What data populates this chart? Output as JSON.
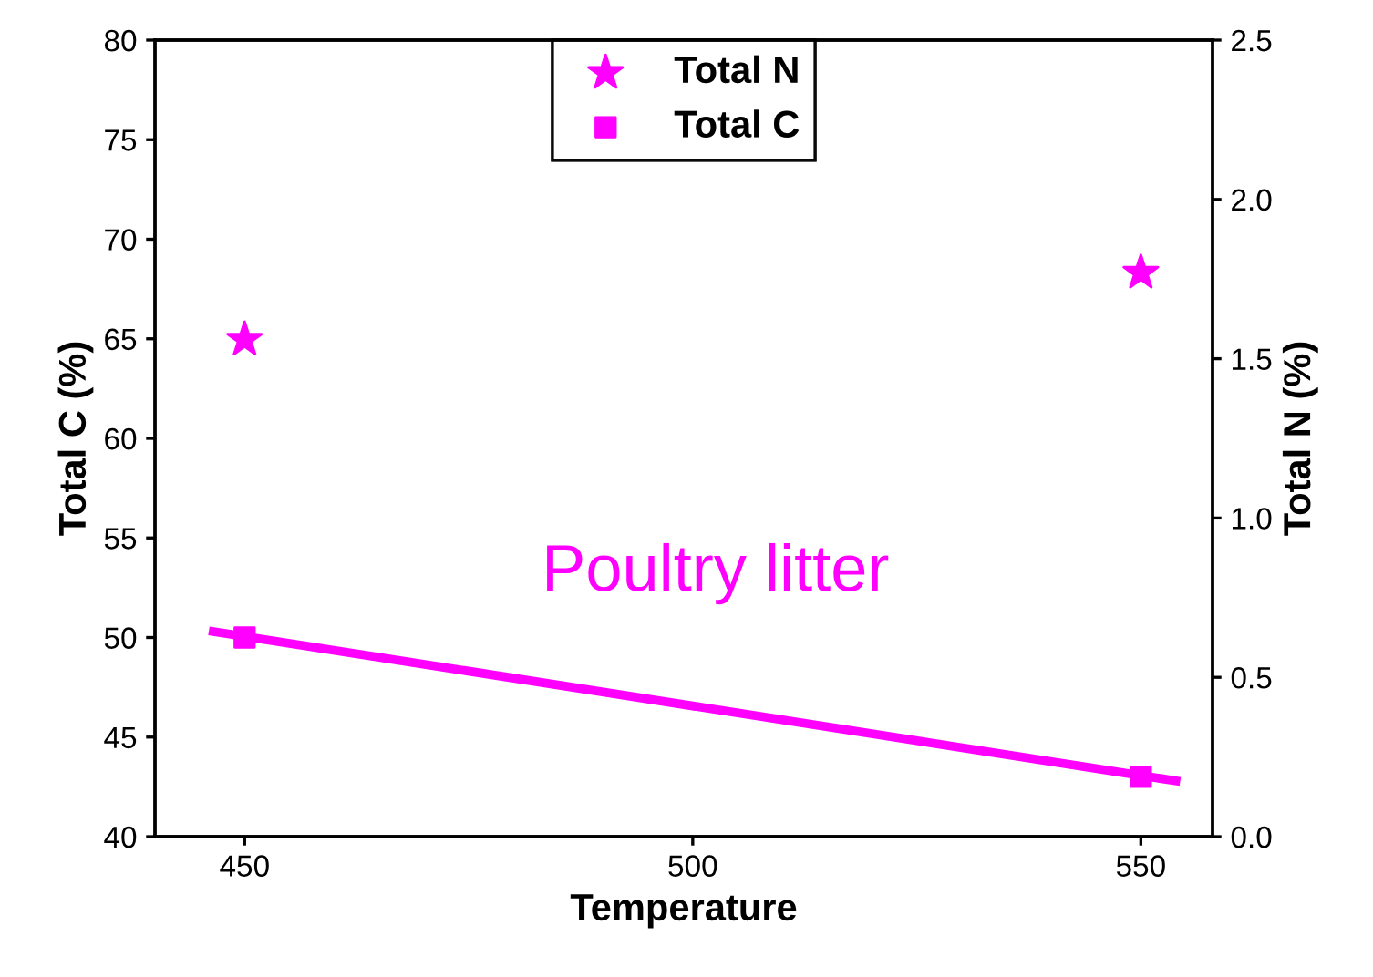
{
  "chart_data": {
    "type": "scatter",
    "xlabel": "Temperature",
    "ylabel": "Total C (%)",
    "y2label": "Total N (%)",
    "xlim": [
      440,
      558
    ],
    "xticks": [
      450,
      500,
      550
    ],
    "ylim": [
      40,
      80
    ],
    "yticks": [
      40,
      45,
      50,
      55,
      60,
      65,
      70,
      75,
      80
    ],
    "y2lim": [
      0,
      2.5
    ],
    "y2ticks": [
      {
        "value": 0,
        "label": "0.0"
      },
      0.5,
      {
        "value": 1,
        "label": "1.0"
      },
      1.5,
      {
        "value": 2,
        "label": "2.0"
      },
      2.5
    ],
    "legend": "top",
    "grid": false,
    "annotations": [
      "Poultry litter"
    ],
    "series": [
      {
        "name": "Total N",
        "axis": "y2",
        "marker": "star",
        "color": "#ff00ff",
        "x": [
          450,
          550
        ],
        "values": [
          1.56,
          1.77
        ]
      },
      {
        "name": "Total C",
        "marker": "square",
        "color": "#ff00ff",
        "x": [
          450,
          550
        ],
        "values": [
          50,
          43
        ]
      },
      {
        "type": "line",
        "color": "#ff00ff",
        "x": [
          446.5,
          553.9
        ],
        "values": [
          50.3,
          42.8
        ],
        "line_style": "solid",
        "marker": "none"
      }
    ]
  }
}
